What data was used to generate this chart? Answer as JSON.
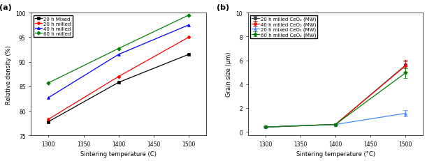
{
  "fig_width": 6.11,
  "fig_height": 2.32,
  "fig_dpi": 100,
  "bg_color": "#ffffff",
  "left": {
    "title": "(a)",
    "xlabel": "Sintering temperature (C)",
    "ylabel": "Relative density (%)",
    "xlim": [
      1275,
      1525
    ],
    "ylim": [
      75,
      100
    ],
    "xticks": [
      1300,
      1350,
      1400,
      1450,
      1500
    ],
    "yticks": [
      75,
      80,
      85,
      90,
      95,
      100
    ],
    "series": [
      {
        "label": "20 h Mixed",
        "color": "#000000",
        "marker": "s",
        "x": [
          1300,
          1400,
          1500
        ],
        "y": [
          77.8,
          85.8,
          91.5
        ]
      },
      {
        "label": "20 h milled",
        "color": "#ff0000",
        "marker": "o",
        "x": [
          1300,
          1400,
          1500
        ],
        "y": [
          78.3,
          87.0,
          95.0
        ]
      },
      {
        "label": "40 h milled",
        "color": "#0000ff",
        "marker": "^",
        "x": [
          1300,
          1400,
          1500
        ],
        "y": [
          82.7,
          91.5,
          97.5
        ]
      },
      {
        "label": "60 h milled",
        "color": "#008000",
        "marker": "D",
        "x": [
          1300,
          1400,
          1500
        ],
        "y": [
          85.7,
          92.7,
          99.5
        ]
      }
    ]
  },
  "right": {
    "title": "(b)",
    "xlabel": "Sintering temperature (°C)",
    "ylabel": "Grain size (μm)",
    "xlim": [
      1275,
      1525
    ],
    "ylim": [
      -0.3,
      10
    ],
    "xticks": [
      1300,
      1350,
      1400,
      1450,
      1500
    ],
    "yticks": [
      0,
      2,
      4,
      6,
      8,
      10
    ],
    "series": [
      {
        "label": "20 h milled CeO₂ (MW)",
        "color": "#404040",
        "marker": "s",
        "x": [
          1300,
          1400,
          1500
        ],
        "y": [
          0.4,
          0.62,
          5.6
        ],
        "yerr": [
          0.05,
          0.05,
          0.3
        ]
      },
      {
        "label": "40 h milled CeO₂ (MW)",
        "color": "#ff0000",
        "marker": "o",
        "x": [
          1300,
          1400,
          1500
        ],
        "y": [
          0.4,
          0.62,
          5.55
        ],
        "yerr": [
          0.05,
          0.05,
          0.5
        ]
      },
      {
        "label": "20 h mixed CeO₂ (MW)",
        "color": "#4488ff",
        "marker": "^",
        "x": [
          1300,
          1400,
          1500
        ],
        "y": [
          0.4,
          0.62,
          1.55
        ],
        "yerr": [
          0.05,
          0.05,
          0.25
        ]
      },
      {
        "label": "60 h milled CeO₂ (MW)",
        "color": "#008000",
        "marker": "D",
        "x": [
          1300,
          1400,
          1500
        ],
        "y": [
          0.4,
          0.62,
          4.95
        ],
        "yerr": [
          0.05,
          0.05,
          0.45
        ]
      }
    ]
  }
}
